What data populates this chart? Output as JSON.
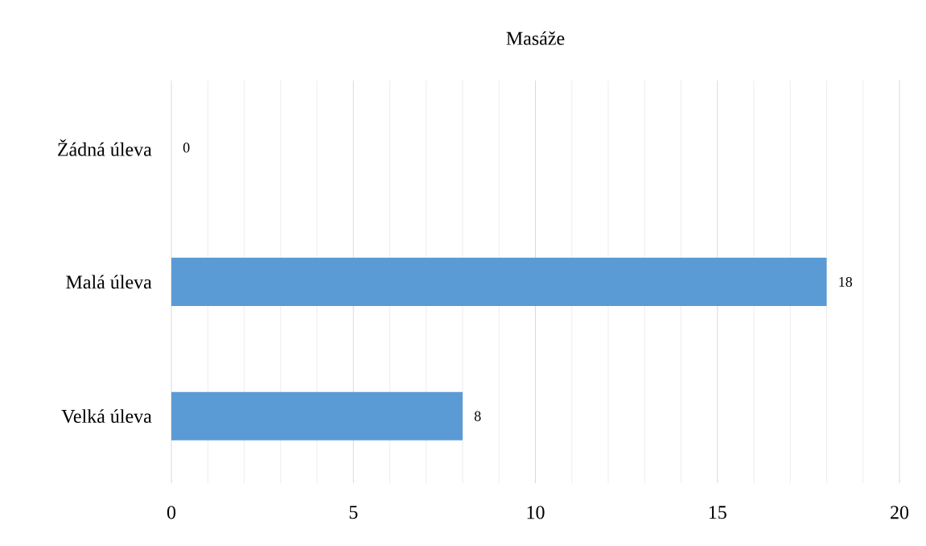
{
  "chart_data": {
    "type": "bar",
    "orientation": "horizontal",
    "title": "Masáže",
    "categories": [
      "Žádná úleva",
      "Malá úleva",
      "Velká úleva"
    ],
    "values": [
      0,
      18,
      8
    ],
    "color": "#5b9bd5",
    "xlim": [
      0,
      20
    ],
    "xticks": [
      0,
      5,
      10,
      15,
      20
    ],
    "grid": "x",
    "data_labels": true
  }
}
